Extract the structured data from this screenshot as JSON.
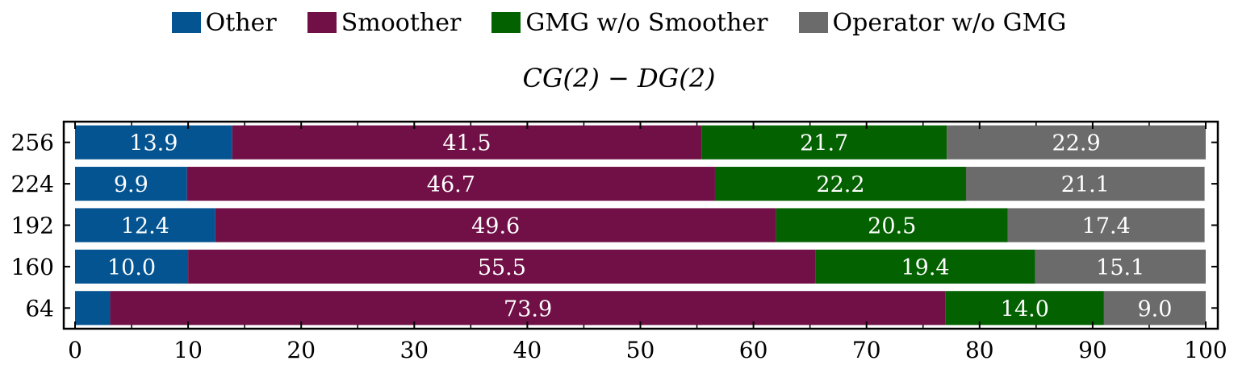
{
  "chart_data": {
    "type": "bar",
    "orientation": "horizontal",
    "stacked": true,
    "title": "CG(2) − DG(2)",
    "xlabel": "",
    "ylabel": "",
    "xlim": [
      0,
      100
    ],
    "xticks": [
      "0",
      "10",
      "20",
      "30",
      "40",
      "50",
      "60",
      "70",
      "80",
      "90",
      "100"
    ],
    "categories": [
      "256",
      "224",
      "192",
      "160",
      "64"
    ],
    "legend_position": "top",
    "grid": false,
    "series": [
      {
        "name": "Other",
        "color": "#045491",
        "values": [
          13.9,
          9.9,
          12.4,
          10.0,
          3.1
        ],
        "labels": [
          "13.9",
          "9.9",
          "12.4",
          "10.0",
          ""
        ]
      },
      {
        "name": "Smoother",
        "color": "#701046",
        "values": [
          41.5,
          46.7,
          49.6,
          55.5,
          73.9
        ],
        "labels": [
          "41.5",
          "46.7",
          "49.6",
          "55.5",
          "73.9"
        ]
      },
      {
        "name": "GMG w/o Smoother",
        "color": "#036100",
        "values": [
          21.7,
          22.2,
          20.5,
          19.4,
          14.0
        ],
        "labels": [
          "21.7",
          "22.2",
          "20.5",
          "19.4",
          "14.0"
        ]
      },
      {
        "name": "Operator w/o GMG",
        "color": "#6b6b6b",
        "values": [
          22.9,
          21.1,
          17.4,
          15.1,
          9.0
        ],
        "labels": [
          "22.9",
          "21.1",
          "17.4",
          "15.1",
          "9.0"
        ]
      }
    ]
  }
}
